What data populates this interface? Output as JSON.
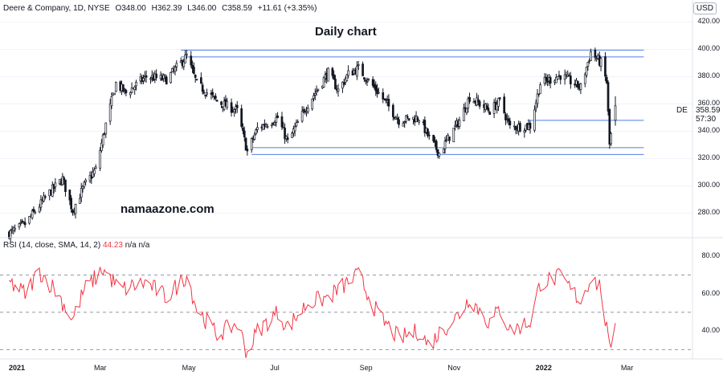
{
  "legend": {
    "symbol": "Deere & Company, 1D, NYSE",
    "open": "O348.00",
    "high": "H362.39",
    "low": "L346.00",
    "close": "C358.59",
    "change": "+11.61 (+3.35%)"
  },
  "currency": "USD",
  "annotation_title": "Daily chart",
  "watermark": "namaazone.com",
  "ticker_label": "DE",
  "last_price": "358.59",
  "countdown": "57:30",
  "rsi_legend": {
    "label": "RSI (14, close, SMA, 14, 2)",
    "value": "44.23",
    "na1": "n/a",
    "na2": "n/a"
  },
  "colors": {
    "up": "#131722",
    "down": "#131722",
    "rsi_line": "#f23645",
    "level_lines": "#4f7ee8",
    "grid": "#f0f3fa"
  },
  "chart_data": [
    {
      "type": "candlestick",
      "title": "Daily chart",
      "series_name": "Deere & Company, 1D, NYSE",
      "ylim": [
        262,
        425
      ],
      "y_ticks": [
        280,
        300,
        320,
        340,
        360,
        380,
        400,
        420
      ],
      "x_ticks": [
        "2021",
        "Mar",
        "May",
        "Jul",
        "Sep",
        "Nov",
        "2022",
        "Mar"
      ],
      "price_path": [
        [
          "2021-01-04",
          265
        ],
        [
          "2021-01-15",
          272
        ],
        [
          "2021-02-01",
          295
        ],
        [
          "2021-02-10",
          305
        ],
        [
          "2021-02-17",
          282
        ],
        [
          "2021-02-25",
          300
        ],
        [
          "2021-03-05",
          312
        ],
        [
          "2021-03-12",
          345
        ],
        [
          "2021-03-19",
          375
        ],
        [
          "2021-03-26",
          368
        ],
        [
          "2021-04-09",
          380
        ],
        [
          "2021-04-23",
          378
        ],
        [
          "2021-05-07",
          395
        ],
        [
          "2021-05-14",
          375
        ],
        [
          "2021-05-28",
          362
        ],
        [
          "2021-06-11",
          355
        ],
        [
          "2021-06-18",
          325
        ],
        [
          "2021-06-25",
          342
        ],
        [
          "2021-07-09",
          350
        ],
        [
          "2021-07-16",
          332
        ],
        [
          "2021-07-30",
          360
        ],
        [
          "2021-08-13",
          383
        ],
        [
          "2021-08-20",
          370
        ],
        [
          "2021-08-27",
          382
        ],
        [
          "2021-09-03",
          386
        ],
        [
          "2021-09-17",
          368
        ],
        [
          "2021-10-01",
          348
        ],
        [
          "2021-10-15",
          350
        ],
        [
          "2021-10-22",
          335
        ],
        [
          "2021-10-29",
          324
        ],
        [
          "2021-11-12",
          348
        ],
        [
          "2021-11-19",
          365
        ],
        [
          "2021-12-03",
          355
        ],
        [
          "2021-12-10",
          362
        ],
        [
          "2021-12-17",
          343
        ],
        [
          "2021-12-31",
          344
        ],
        [
          "2022-01-07",
          375
        ],
        [
          "2022-01-21",
          381
        ],
        [
          "2022-02-04",
          372
        ],
        [
          "2022-02-11",
          398
        ],
        [
          "2022-02-18",
          390
        ],
        [
          "2022-02-22",
          376
        ],
        [
          "2022-02-24",
          330
        ],
        [
          "2022-02-28",
          358.59
        ]
      ],
      "support_resistance": [
        {
          "from": "2021-05-03",
          "to": "2022-03-03",
          "value": 399.5
        },
        {
          "from": "2021-05-03",
          "to": "2022-03-03",
          "value": 394.5
        },
        {
          "from": "2021-06-21",
          "to": "2022-03-03",
          "value": 328
        },
        {
          "from": "2021-06-21",
          "to": "2022-03-03",
          "value": 323
        },
        {
          "from": "2021-12-29",
          "to": "2022-03-03",
          "value": 348
        }
      ]
    },
    {
      "type": "line",
      "title": "RSI (14, close, SMA, 14, 2)",
      "ylim": [
        25,
        90
      ],
      "y_ticks": [
        40,
        60,
        80
      ],
      "levels": [
        70,
        50,
        30
      ],
      "rsi_path": [
        [
          "2021-01-04",
          66
        ],
        [
          "2021-01-15",
          60
        ],
        [
          "2021-01-25",
          72
        ],
        [
          "2021-02-05",
          62
        ],
        [
          "2021-02-17",
          46
        ],
        [
          "2021-02-25",
          62
        ],
        [
          "2021-03-10",
          73
        ],
        [
          "2021-03-22",
          62
        ],
        [
          "2021-04-09",
          66
        ],
        [
          "2021-04-23",
          58
        ],
        [
          "2021-05-07",
          70
        ],
        [
          "2021-05-14",
          52
        ],
        [
          "2021-05-28",
          38
        ],
        [
          "2021-06-11",
          44
        ],
        [
          "2021-06-18",
          28
        ],
        [
          "2021-06-25",
          40
        ],
        [
          "2021-07-09",
          50
        ],
        [
          "2021-07-16",
          42
        ],
        [
          "2021-07-30",
          55
        ],
        [
          "2021-08-13",
          58
        ],
        [
          "2021-08-27",
          66
        ],
        [
          "2021-09-03",
          70
        ],
        [
          "2021-09-17",
          48
        ],
        [
          "2021-10-01",
          36
        ],
        [
          "2021-10-15",
          40
        ],
        [
          "2021-10-22",
          32
        ],
        [
          "2021-10-29",
          39
        ],
        [
          "2021-11-12",
          49
        ],
        [
          "2021-11-19",
          58
        ],
        [
          "2021-12-03",
          44
        ],
        [
          "2021-12-10",
          52
        ],
        [
          "2021-12-17",
          40
        ],
        [
          "2021-12-31",
          45
        ],
        [
          "2022-01-07",
          66
        ],
        [
          "2022-01-21",
          69
        ],
        [
          "2022-02-04",
          56
        ],
        [
          "2022-02-11",
          69
        ],
        [
          "2022-02-18",
          63
        ],
        [
          "2022-02-24",
          29
        ],
        [
          "2022-02-28",
          44.23
        ]
      ]
    }
  ]
}
